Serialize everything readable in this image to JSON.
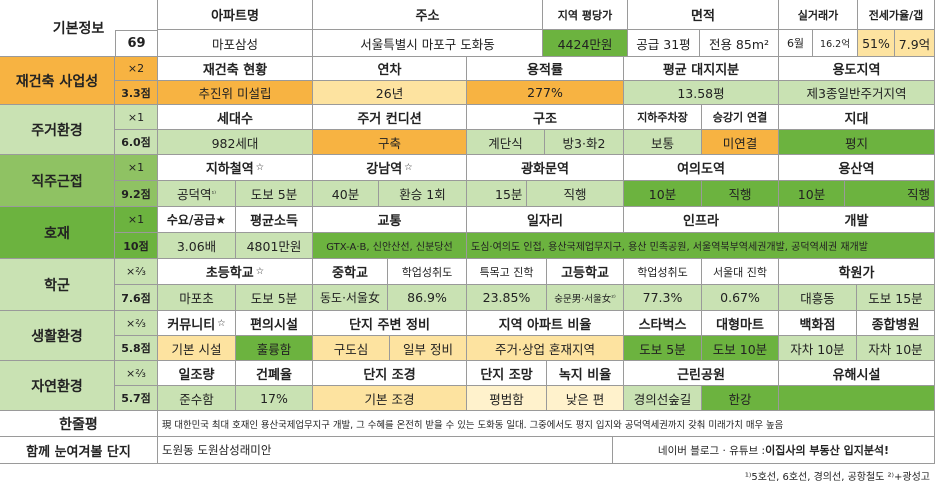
{
  "basic": {
    "label": "기본정보",
    "number": "69",
    "headers": {
      "apt": "아파트명",
      "addr": "주소",
      "price_area": "지역 평당가",
      "area": "면적",
      "trade": "실거래가",
      "jeonse": "전세가율/갭"
    },
    "apt": "마포삼성",
    "addr": "서울특별시 마포구 도화동",
    "price": "4424만원",
    "supply": "공급 31평",
    "exclusive": "전용 85m²",
    "trade_month": "6월",
    "trade_price": "16.2억",
    "jeonse_rate": "51%",
    "gap": "7.9억"
  },
  "rebuild": {
    "label": "재건축 사업성",
    "weight": "×2",
    "score": "3.3점",
    "headers": [
      "재건축 현황",
      "연차",
      "용적률",
      "평균 대지지분",
      "용도지역"
    ],
    "values": [
      "추진위 미설립",
      "26년",
      "277%",
      "13.58평",
      "제3종일반주거지역"
    ]
  },
  "living": {
    "label": "주거환경",
    "weight": "×1",
    "score": "6.0점",
    "headers": [
      "세대수",
      "주거 컨디션",
      "구조",
      "지하주차장",
      "승강기 연결",
      "지대"
    ],
    "values": [
      "982세대",
      "구축",
      "계단식",
      "방3·화2",
      "보통",
      "미연결",
      "평지"
    ]
  },
  "commute": {
    "label": "직주근접",
    "weight": "×1",
    "score": "9.2점",
    "headers": [
      "지하철역",
      "강남역",
      "광화문역",
      "여의도역",
      "용산역"
    ],
    "star": "☆",
    "station": "공덕역",
    "station_sup": "¹⁾",
    "walk": "도보 5분",
    "gangnam_time": "40분",
    "gangnam_transfer": "환승 1회",
    "gwanghwamun_time": "15분",
    "gwanghwamun_type": "직행",
    "yeouido_time": "10분",
    "yeouido_type": "직행",
    "yongsan_time": "10분",
    "yongsan_type": "직행"
  },
  "dev": {
    "label": "호재",
    "weight": "×1",
    "score": "10점",
    "headers": [
      "수요/공급★",
      "평균소득",
      "교통",
      "일자리",
      "인프라",
      "개발"
    ],
    "values": [
      "3.06배",
      "4801만원",
      "GTX-A·B, 신안산선, 신분당선",
      "도심·여의도 인접, 용산국제업무지구, 용산 민족공원, 서울역북부역세권개발, 공덕역세권 재개발"
    ]
  },
  "school": {
    "label": "학군",
    "weight": "×⅔",
    "score": "7.6점",
    "headers": [
      "초등학교",
      "중학교",
      "학업성취도",
      "특목고 진학",
      "고등학교",
      "학업성취도",
      "서울대 진학",
      "학원가"
    ],
    "values": [
      "마포초",
      "도보 5분",
      "동도·서울女",
      "86.9%",
      "23.85%",
      "숭문男·서울女",
      "77.3%",
      "0.67%",
      "대흥동",
      "도보 15분"
    ],
    "hs_sup": "²⁾"
  },
  "life": {
    "label": "생활환경",
    "weight": "×⅔",
    "score": "5.8점",
    "headers": [
      "커뮤니티",
      "편의시설",
      "단지 주변 정비",
      "지역 아파트 비율",
      "스타벅스",
      "대형마트",
      "백화점",
      "종합병원"
    ],
    "values": [
      "기본 시설",
      "훌륭함",
      "구도심",
      "일부 정비",
      "주거·상업 혼재지역",
      "도보 5분",
      "도보 10분",
      "자차 10분",
      "자차 10분"
    ]
  },
  "nature": {
    "label": "자연환경",
    "weight": "×⅔",
    "score": "5.7점",
    "headers": [
      "일조량",
      "건폐율",
      "단지 조경",
      "단지 조망",
      "녹지 비율",
      "근린공원",
      "유해시설"
    ],
    "values": [
      "준수함",
      "17%",
      "기본 조경",
      "평범함",
      "낮은 편",
      "경의선숲길",
      "한강",
      ""
    ]
  },
  "review": {
    "label": "한줄평",
    "text": "現 대한민국 최대 호재인 용산국제업무지구 개발, 그 수혜를 온전히 받을 수 있는 도화동 일대. 그중에서도 평지 입지와 공덕역세권까지 갖춰 미래가치 매우 높음"
  },
  "together": {
    "label": "함께 눈여겨볼 단지",
    "text": "도원동 도원삼성래미안",
    "credit_prefix": "네이버 블로그 · 유튜브 : ",
    "credit": "이집사의 부동산 입지분석!"
  },
  "footnote": "¹⁾5호선, 6호선, 경의선, 공항철도 ²⁾+광성고"
}
